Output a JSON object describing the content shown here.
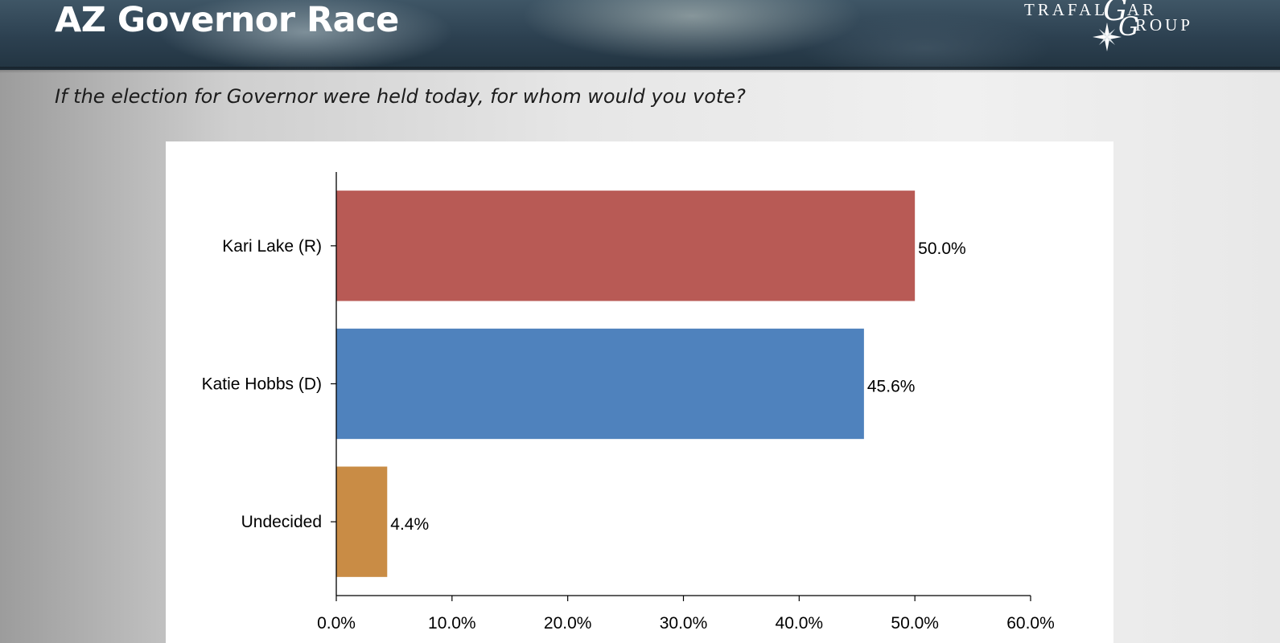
{
  "header": {
    "title": "AZ Governor Race",
    "logo": {
      "line1_left": "TRAFAL",
      "line1_script": "G",
      "line1_right": "AR",
      "line2_script": "G",
      "line2_right": "ROUP"
    }
  },
  "question": "If the election for Governor were held today, for whom would you vote?",
  "colors": {
    "republican": "#b85a55",
    "democrat": "#4f82bd",
    "undecided": "#c98c45"
  },
  "chart_data": {
    "type": "bar",
    "orientation": "horizontal",
    "categories": [
      "Kari Lake (R)",
      "Katie Hobbs (D)",
      "Undecided"
    ],
    "values": [
      50.0,
      45.6,
      4.4
    ],
    "value_labels": [
      "50.0%",
      "45.6%",
      "4.4%"
    ],
    "bar_colors": [
      "#b85a55",
      "#4f82bd",
      "#c98c45"
    ],
    "xlim": [
      0,
      60
    ],
    "xticks": [
      0,
      10,
      20,
      30,
      40,
      50,
      60
    ],
    "xtick_labels": [
      "0.0%",
      "10.0%",
      "20.0%",
      "30.0%",
      "40.0%",
      "50.0%",
      "60.0%"
    ],
    "grid": false,
    "legend": "none"
  }
}
